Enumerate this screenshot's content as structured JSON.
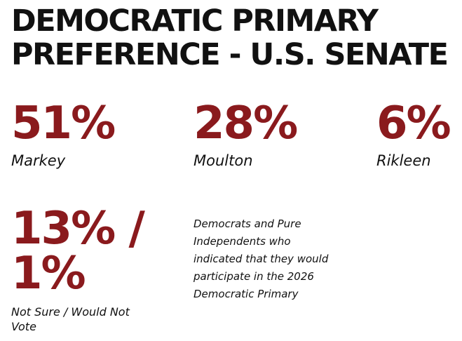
{
  "title": "DEMOCRATIC PRIMARY PREFERENCE - U.S. SENATE",
  "colors": {
    "accent": "#8a1a1d",
    "text": "#111111",
    "background": "#ffffff"
  },
  "chart_data": {
    "type": "table",
    "title": "DEMOCRATIC PRIMARY PREFERENCE - U.S. SENATE",
    "items": [
      {
        "label": "Markey",
        "display": "51%",
        "value": 51
      },
      {
        "label": "Moulton",
        "display": "28%",
        "value": 28
      },
      {
        "label": "Rikleen",
        "display": "6%",
        "value": 6
      },
      {
        "label": "Not Sure / Would Not Vote",
        "display": "13% / 1%",
        "values": [
          13,
          1
        ]
      }
    ],
    "note": "Democrats and Pure Independents who indicated that they would participate in the 2026 Democratic Primary"
  }
}
